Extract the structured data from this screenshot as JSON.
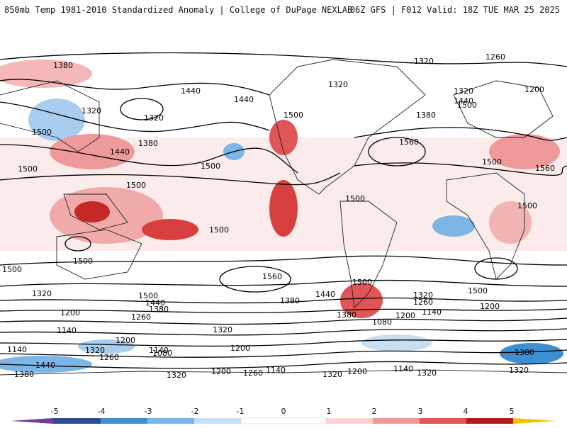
{
  "header": {
    "title_left": "850mb Temp 1981-2010 Standardized Anomaly | College of DuPage NEXLAB",
    "title_right": "06Z GFS | F012 Valid: 18Z TUE MAR 25 2025"
  },
  "map": {
    "projection": "global-cylindrical",
    "contour_labels": [
      "1380",
      "1380",
      "1320",
      "1320",
      "1440",
      "1500",
      "1380",
      "1500",
      "1440",
      "1500",
      "1320",
      "1440",
      "1500",
      "1380",
      "1500",
      "1320",
      "1260",
      "1320",
      "1320",
      "1200",
      "1440",
      "1380",
      "1500",
      "1560",
      "1500",
      "1560",
      "1500",
      "1500",
      "1500",
      "1500",
      "1500",
      "1500",
      "1560",
      "1440",
      "1500",
      "1320",
      "1500",
      "1440",
      "1380",
      "1380",
      "1200",
      "1260",
      "1320",
      "1440",
      "1380",
      "1500",
      "1080",
      "1140",
      "1320",
      "1140",
      "1200",
      "1140",
      "1200",
      "1260",
      "1380",
      "1140",
      "1200",
      "1080",
      "1320",
      "1440",
      "1380",
      "1200",
      "1140",
      "1260",
      "1320",
      "1260",
      "1200",
      "1140",
      "1320",
      "1140",
      "1200",
      "1320",
      "1260",
      "1380",
      "1500",
      "1260",
      "1140"
    ]
  },
  "colorbar": {
    "ticks": [
      "-5",
      "-4",
      "-3",
      "-2",
      "-1",
      "0",
      "1",
      "2",
      "3",
      "4",
      "5"
    ],
    "colors": {
      "n5": "#6a3d9a",
      "n4": "#2c4f8c",
      "n3": "#3d8fd1",
      "n2": "#7db6e6",
      "n1": "#c8dff2",
      "zero": "#ffffff",
      "p1": "#f7d3d3",
      "p2": "#ef9a9a",
      "p3": "#e05555",
      "p4": "#b31c1c",
      "p5": "#7a0d0d",
      "over": "#f2c200"
    }
  }
}
